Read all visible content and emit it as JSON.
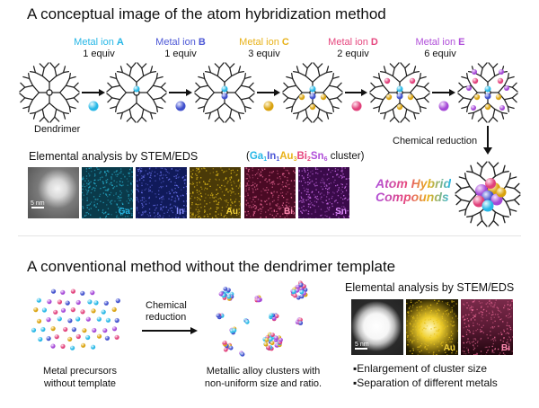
{
  "top": {
    "title": "A conceptual image of the atom hybridization method",
    "ions": [
      {
        "prefix": "Metal ion ",
        "letter": "A",
        "equiv": "1 equiv",
        "color": "#27b7e6"
      },
      {
        "prefix": "Metal ion ",
        "letter": "B",
        "equiv": "1 equiv",
        "color": "#4d58d6"
      },
      {
        "prefix": "Metal ion ",
        "letter": "C",
        "equiv": "3 equiv",
        "color": "#e8b21a"
      },
      {
        "prefix": "Metal ion ",
        "letter": "D",
        "equiv": "2 equiv",
        "color": "#e6467e"
      },
      {
        "prefix": "Metal ion ",
        "letter": "E",
        "equiv": "6 equiv",
        "color": "#b04fd9"
      }
    ],
    "dendrimer_label": "Dendrimer",
    "reduction_label": "Chemical reduction",
    "eds_title": "Elemental analysis by STEM/EDS",
    "cluster_formula": {
      "open": "(",
      "parts": [
        {
          "el": "Ga",
          "n": "1",
          "color": "#27b7e6"
        },
        {
          "el": "In",
          "n": "1",
          "color": "#4d58d6"
        },
        {
          "el": "Au",
          "n": "3",
          "color": "#e8b21a"
        },
        {
          "el": "Bi",
          "n": "2",
          "color": "#e6467e"
        },
        {
          "el": "Sn",
          "n": "6",
          "color": "#b04fd9"
        }
      ],
      "close": " cluster)"
    },
    "scale_label": "5 nm",
    "panels": [
      {
        "el": "Ga",
        "color": "#27b7e6"
      },
      {
        "el": "In",
        "color": "#6b73f0"
      },
      {
        "el": "Au",
        "color": "#e8c21a"
      },
      {
        "el": "Bi",
        "color": "#f06b9a"
      },
      {
        "el": "Sn",
        "color": "#d070ee"
      }
    ],
    "compound_line1": "Atom Hybrid",
    "compound_line2": "Compounds"
  },
  "bottom": {
    "title": "A conventional method without the dendrimer template",
    "precursor_caption_1": "Metal precursors",
    "precursor_caption_2": "without template",
    "reduction_line1": "Chemical",
    "reduction_line2": "reduction",
    "alloy_caption_1": "Metallic alloy clusters with",
    "alloy_caption_2": "non-uniform size and ratio.",
    "eds_title": "Elemental analysis by STEM/EDS",
    "scale_label": "5 nm",
    "panels": [
      {
        "el": "Au",
        "color": "#e8c21a"
      },
      {
        "el": "Bi",
        "color": "#f06b9a"
      }
    ],
    "bullets": [
      "Enlargement of cluster size",
      "Separation of different metals"
    ]
  }
}
